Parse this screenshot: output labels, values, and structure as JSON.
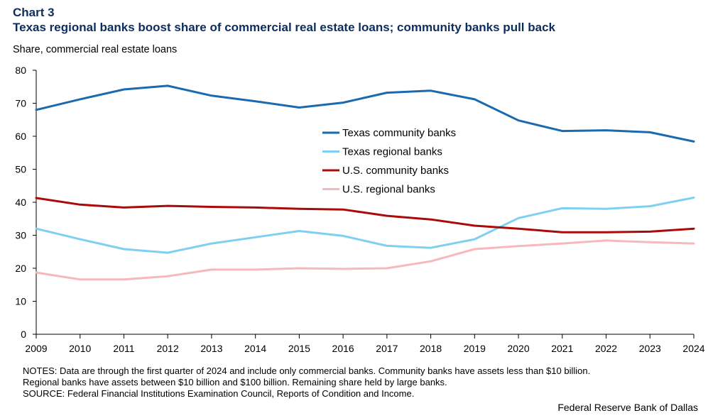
{
  "header": {
    "chart_number": "Chart 3",
    "title": "Texas regional banks boost share of commercial real estate loans; community banks pull back",
    "y_axis_title": "Share, commercial real estate loans"
  },
  "notes": {
    "line1": "NOTES: Data are through the first quarter of 2024 and include only commercial banks. Community banks have assets less than $10 billion.",
    "line2": "Regional banks have assets between $10 billion and $100 billion. Remaining share held by large banks.",
    "line3": "SOURCE: Federal Financial Institutions Examination Council, Reports of Condition and Income."
  },
  "credit": "Federal Reserve Bank of Dallas",
  "chart_data": {
    "type": "line",
    "title": "Texas regional banks boost share of commercial real estate loans; community banks pull back",
    "ylabel": "Share, commercial real estate loans",
    "xlabel": "",
    "ylim": [
      0,
      80
    ],
    "yticks": [
      0,
      10,
      20,
      30,
      40,
      50,
      60,
      70,
      80
    ],
    "x": [
      "2009",
      "2010",
      "2011",
      "2012",
      "2013",
      "2014",
      "2015",
      "2016",
      "2017",
      "2018",
      "2019",
      "2020",
      "2021",
      "2022",
      "2023",
      "2024"
    ],
    "grid": false,
    "legend_position": "center-right",
    "series": [
      {
        "name": "Texas community banks",
        "color": "#1a6aaf",
        "values": [
          68.0,
          71.2,
          74.2,
          75.3,
          72.3,
          70.6,
          68.7,
          70.2,
          73.2,
          73.8,
          71.2,
          64.8,
          61.6,
          61.8,
          61.2,
          58.4
        ]
      },
      {
        "name": "Texas regional banks",
        "color": "#7fd0f0",
        "values": [
          32.0,
          28.8,
          25.8,
          24.7,
          27.5,
          29.4,
          31.3,
          29.8,
          26.8,
          26.2,
          28.8,
          35.2,
          38.2,
          38.0,
          38.8,
          41.4
        ]
      },
      {
        "name": "U.S. community banks",
        "color": "#aa0a0a",
        "values": [
          41.3,
          39.3,
          38.4,
          38.9,
          38.6,
          38.4,
          38.0,
          37.8,
          35.9,
          34.8,
          32.9,
          32.0,
          30.9,
          30.9,
          31.1,
          32.0
        ]
      },
      {
        "name": "U.S. regional banks",
        "color": "#f6b8bc",
        "values": [
          18.7,
          16.6,
          16.6,
          17.6,
          19.6,
          19.6,
          20.0,
          19.8,
          20.0,
          22.1,
          25.8,
          26.7,
          27.5,
          28.4,
          27.9,
          27.5
        ]
      }
    ]
  }
}
